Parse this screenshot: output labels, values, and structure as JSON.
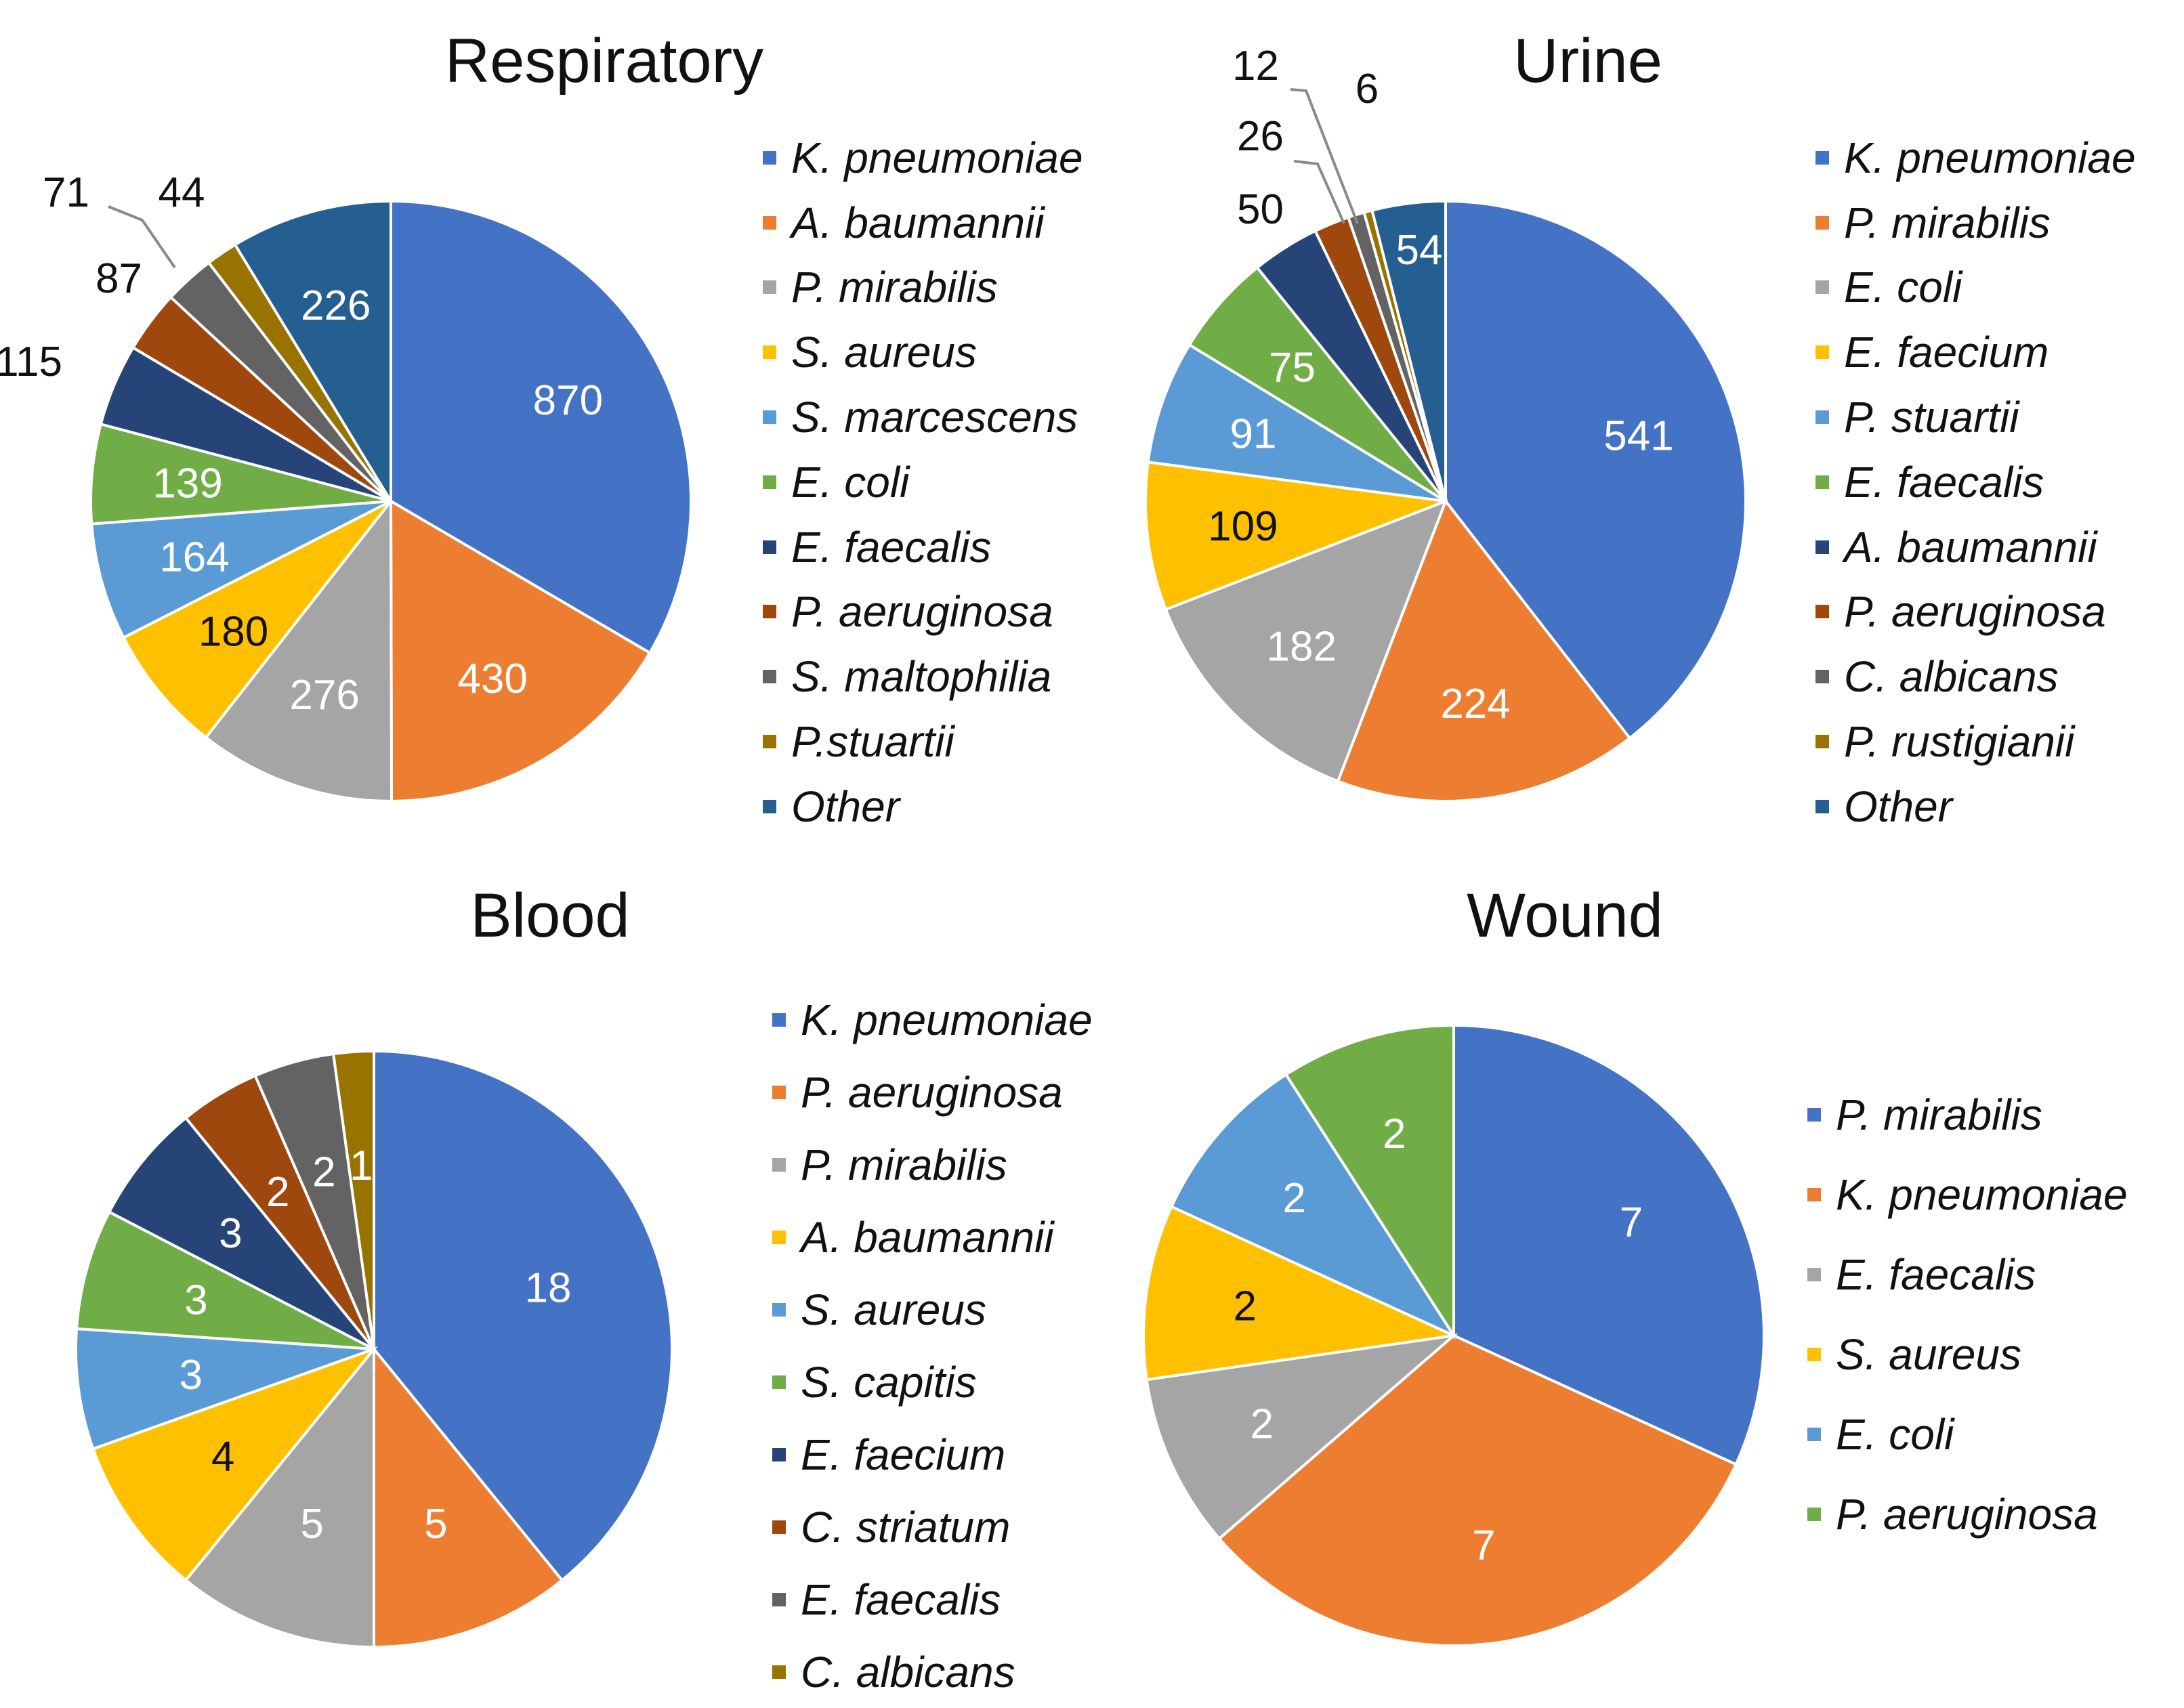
{
  "chart_data": [
    {
      "type": "pie",
      "title": "Respiratory",
      "categories": [
        "K. pneumoniae",
        "A. baumannii",
        "P. mirabilis",
        "S. aureus",
        "S. marcescens",
        "E. coli",
        "E. faecalis",
        "P. aeruginosa",
        "S. maltophilia",
        "P.stuartii",
        "Other"
      ],
      "values": [
        870,
        430,
        276,
        180,
        164,
        139,
        115,
        87,
        71,
        44,
        226
      ],
      "colors": [
        "#4472C4",
        "#ED7D31",
        "#A5A5A5",
        "#FFC000",
        "#5B9BD5",
        "#70AD47",
        "#264478",
        "#9E480E",
        "#636363",
        "#997300",
        "#255E91"
      ],
      "legend": "right"
    },
    {
      "type": "pie",
      "title": "Urine",
      "categories": [
        "K. pneumoniae",
        "P. mirabilis",
        "E. coli",
        "E. faecium",
        "P. stuartii",
        "E. faecalis",
        "A. baumannii",
        "P. aeruginosa",
        "C. albicans",
        "P. rustigianii",
        "Other"
      ],
      "values": [
        541,
        224,
        182,
        109,
        91,
        75,
        50,
        26,
        12,
        6,
        54
      ],
      "colors": [
        "#4472C4",
        "#ED7D31",
        "#A5A5A5",
        "#FFC000",
        "#5B9BD5",
        "#70AD47",
        "#264478",
        "#9E480E",
        "#636363",
        "#997300",
        "#255E91"
      ],
      "legend": "right"
    },
    {
      "type": "pie",
      "title": "Blood",
      "categories": [
        "K. pneumoniae",
        "P. aeruginosa",
        "P. mirabilis",
        "A. baumannii",
        "S. aureus",
        "S. capitis",
        "E. faecium",
        "C. striatum",
        "E. faecalis",
        "C. albicans"
      ],
      "values": [
        18,
        5,
        5,
        4,
        3,
        3,
        3,
        2,
        2,
        1
      ],
      "colors": [
        "#4472C4",
        "#ED7D31",
        "#A5A5A5",
        "#FFC000",
        "#5B9BD5",
        "#70AD47",
        "#264478",
        "#9E480E",
        "#636363",
        "#997300"
      ],
      "legend": "right"
    },
    {
      "type": "pie",
      "title": "Wound",
      "categories": [
        "P. mirabilis",
        "K. pneumoniae",
        "E. faecalis",
        "S. aureus",
        "E. coli",
        "P. aeruginosa"
      ],
      "values": [
        7,
        7,
        2,
        2,
        2,
        2
      ],
      "colors": [
        "#4472C4",
        "#ED7D31",
        "#A5A5A5",
        "#FFC000",
        "#5B9BD5",
        "#70AD47"
      ],
      "legend": "right"
    }
  ]
}
